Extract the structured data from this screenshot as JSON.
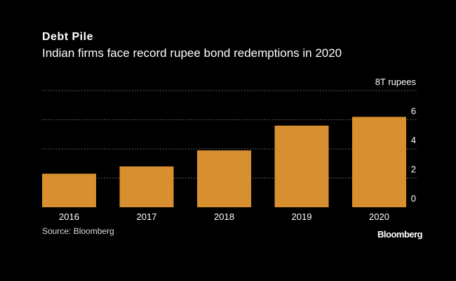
{
  "header": {
    "title": "Debt Pile",
    "subtitle": "Indian firms face record rupee bond redemptions in 2020"
  },
  "footer": {
    "source": "Source: Bloomberg",
    "brand": "Bloomberg"
  },
  "colors": {
    "background": "#000000",
    "bar": "#d88f2f",
    "grid": "#7a7a7a",
    "text": "#ffffff"
  },
  "chart_data": {
    "type": "bar",
    "title": "Debt Pile",
    "subtitle": "Indian firms face record rupee bond redemptions in 2020",
    "categories": [
      "2016",
      "2017",
      "2018",
      "2019",
      "2020"
    ],
    "values": [
      2.3,
      2.8,
      3.9,
      5.6,
      6.2
    ],
    "unit_label": "8T rupees",
    "yticks": [
      {
        "value": 8,
        "label": "8T rupees"
      },
      {
        "value": 6,
        "label": "6"
      },
      {
        "value": 4,
        "label": "4"
      },
      {
        "value": 2,
        "label": "2"
      },
      {
        "value": 0,
        "label": "0"
      }
    ],
    "ylim": [
      0,
      8
    ],
    "grid": true,
    "y_axis_side": "right"
  }
}
